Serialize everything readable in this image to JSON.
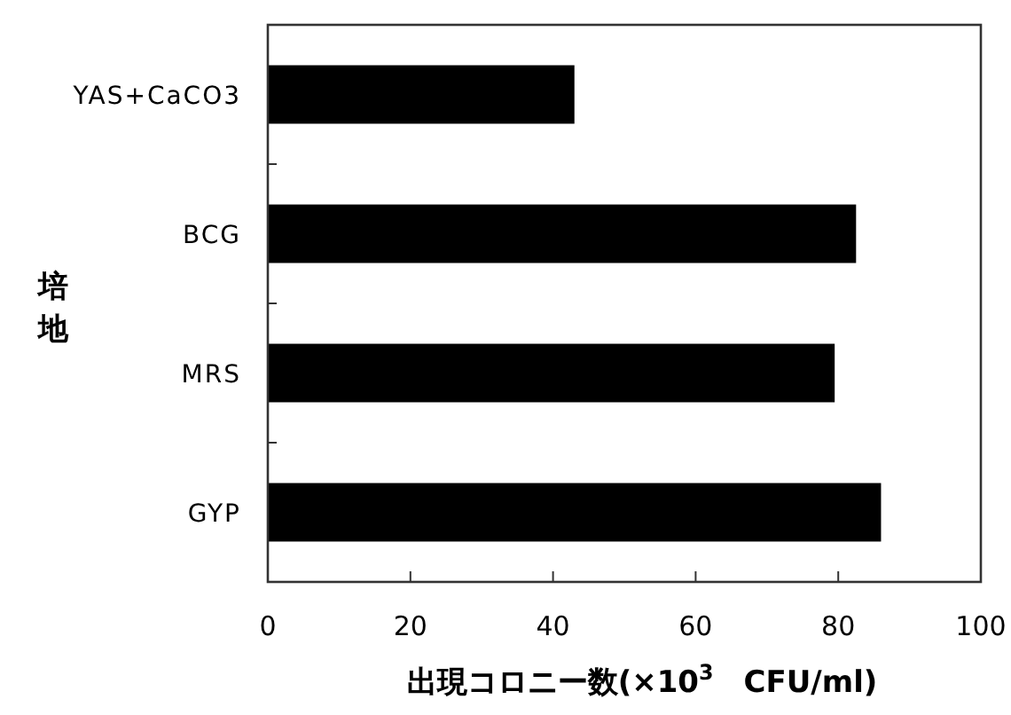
{
  "chart_data": {
    "type": "bar",
    "orientation": "horizontal",
    "categories": [
      "YAS+CaCO3",
      "BCG",
      "MRS",
      "GYP"
    ],
    "values": [
      43,
      82.5,
      79.5,
      86
    ],
    "color": "#000000",
    "xlim": [
      0,
      100
    ],
    "xticks": [
      0,
      20,
      40,
      60,
      80,
      100
    ],
    "xlabel": "出現コロニー数(×10$^{3}$　CFU/ml)",
    "ylabel": "培地",
    "grid": false
  }
}
